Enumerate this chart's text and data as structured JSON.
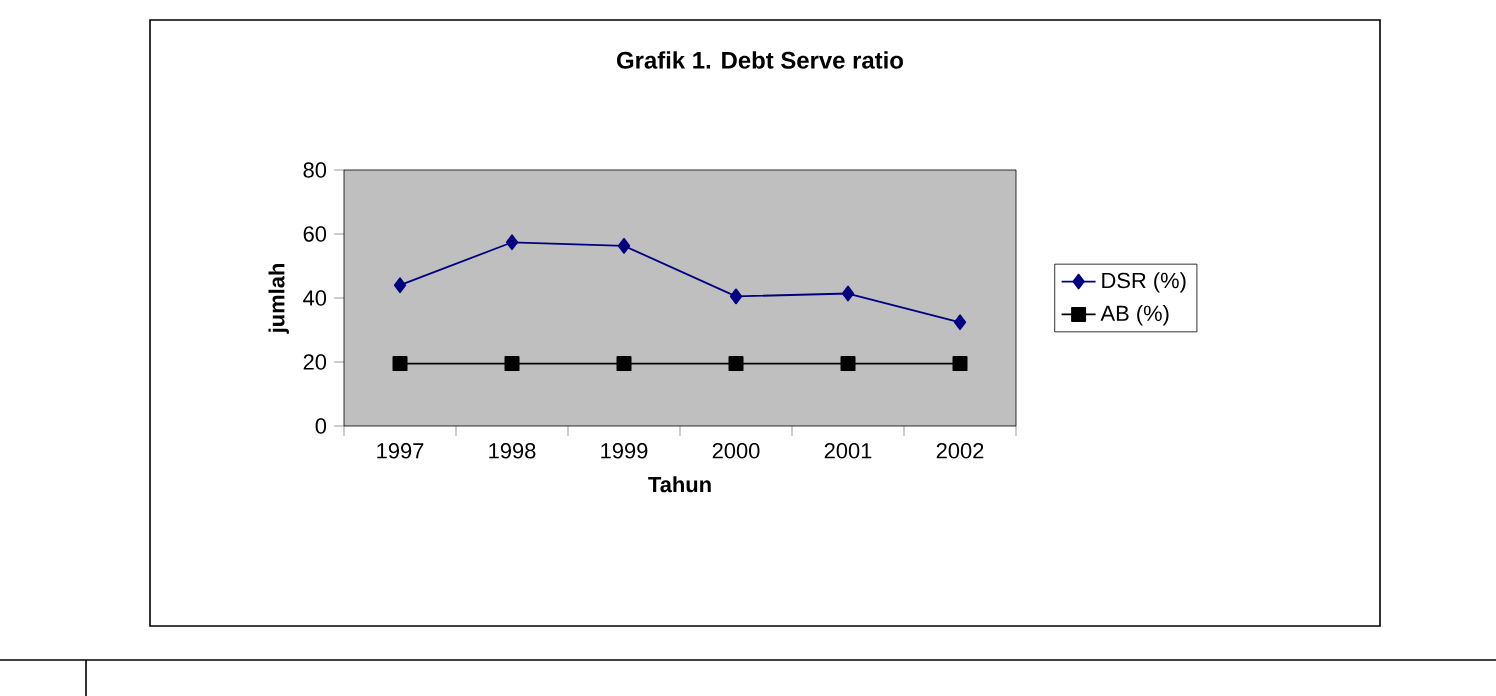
{
  "chart_data": {
    "type": "line",
    "title": "Grafik 1. Debt Serve ratio",
    "xlabel": "Tahun",
    "ylabel": "jumlah",
    "categories": [
      "1997",
      "1998",
      "1999",
      "2000",
      "2001",
      "2002"
    ],
    "series": [
      {
        "name": "DSR (%)",
        "color": "#000080",
        "marker": "diamond",
        "values": [
          44,
          57.4,
          56.3,
          40.5,
          41.4,
          32.4
        ]
      },
      {
        "name": "AB (%)",
        "color": "#000000",
        "marker": "square",
        "values": [
          19.5,
          19.5,
          19.5,
          19.5,
          19.5,
          19.5
        ]
      }
    ],
    "ylim": [
      0,
      80
    ],
    "yticks": [
      0,
      20,
      40,
      60,
      80
    ],
    "grid": false,
    "legend": "right",
    "line_style": "solid"
  }
}
